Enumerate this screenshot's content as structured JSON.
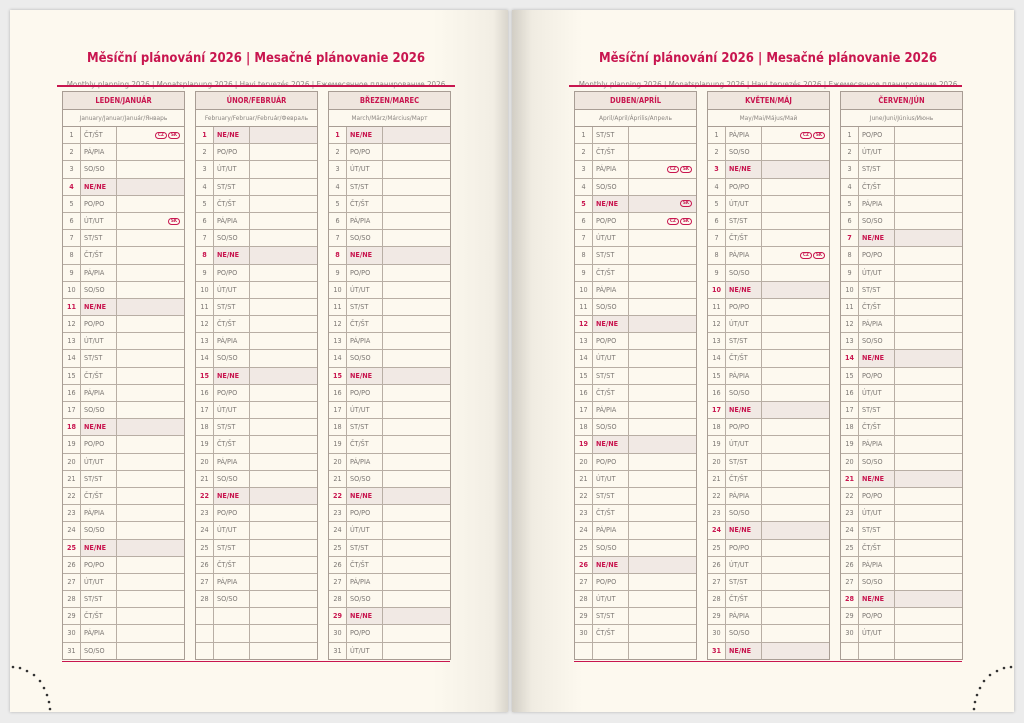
{
  "pages": [
    {
      "title": "Měsíční plánování 2026 | Mesačné plánovanie 2026",
      "subtitle": "Monthly planning 2026 | Monatsplanung 2026 | Havi tervezés 2026 | Ежемесячное планирование 2026",
      "months": [
        {
          "name": "LEDEN/JANUÁR",
          "sub": "January/Januar/Január/Январь",
          "rows": [
            [
              "1",
              "ČT/ŠT",
              "CZ",
              "SK"
            ],
            [
              "2",
              "PÁ/PIA"
            ],
            [
              "3",
              "SO/SO"
            ],
            [
              "4",
              "NE/NE"
            ],
            [
              "5",
              "PO/PO"
            ],
            [
              "6",
              "ÚT/UT",
              "SK"
            ],
            [
              "7",
              "ST/ST"
            ],
            [
              "8",
              "ČT/ŠT"
            ],
            [
              "9",
              "PÁ/PIA"
            ],
            [
              "10",
              "SO/SO"
            ],
            [
              "11",
              "NE/NE"
            ],
            [
              "12",
              "PO/PO"
            ],
            [
              "13",
              "ÚT/UT"
            ],
            [
              "14",
              "ST/ST"
            ],
            [
              "15",
              "ČT/ŠT"
            ],
            [
              "16",
              "PÁ/PIA"
            ],
            [
              "17",
              "SO/SO"
            ],
            [
              "18",
              "NE/NE"
            ],
            [
              "19",
              "PO/PO"
            ],
            [
              "20",
              "ÚT/UT"
            ],
            [
              "21",
              "ST/ST"
            ],
            [
              "22",
              "ČT/ŠT"
            ],
            [
              "23",
              "PÁ/PIA"
            ],
            [
              "24",
              "SO/SO"
            ],
            [
              "25",
              "NE/NE"
            ],
            [
              "26",
              "PO/PO"
            ],
            [
              "27",
              "ÚT/UT"
            ],
            [
              "28",
              "ST/ST"
            ],
            [
              "29",
              "ČT/ŠT"
            ],
            [
              "30",
              "PÁ/PIA"
            ],
            [
              "31",
              "SO/SO"
            ]
          ]
        },
        {
          "name": "ÚNOR/FEBRUÁR",
          "sub": "February/Februar/Február/Февраль",
          "rows": [
            [
              "1",
              "NE/NE"
            ],
            [
              "2",
              "PO/PO"
            ],
            [
              "3",
              "ÚT/UT"
            ],
            [
              "4",
              "ST/ST"
            ],
            [
              "5",
              "ČT/ŠT"
            ],
            [
              "6",
              "PÁ/PIA"
            ],
            [
              "7",
              "SO/SO"
            ],
            [
              "8",
              "NE/NE"
            ],
            [
              "9",
              "PO/PO"
            ],
            [
              "10",
              "ÚT/UT"
            ],
            [
              "11",
              "ST/ST"
            ],
            [
              "12",
              "ČT/ŠT"
            ],
            [
              "13",
              "PÁ/PIA"
            ],
            [
              "14",
              "SO/SO"
            ],
            [
              "15",
              "NE/NE"
            ],
            [
              "16",
              "PO/PO"
            ],
            [
              "17",
              "ÚT/UT"
            ],
            [
              "18",
              "ST/ST"
            ],
            [
              "19",
              "ČT/ŠT"
            ],
            [
              "20",
              "PÁ/PIA"
            ],
            [
              "21",
              "SO/SO"
            ],
            [
              "22",
              "NE/NE"
            ],
            [
              "23",
              "PO/PO"
            ],
            [
              "24",
              "ÚT/UT"
            ],
            [
              "25",
              "ST/ST"
            ],
            [
              "26",
              "ČT/ŠT"
            ],
            [
              "27",
              "PÁ/PIA"
            ],
            [
              "28",
              "SO/SO"
            ],
            [
              "",
              ""
            ],
            [
              "",
              ""
            ],
            [
              "",
              ""
            ]
          ]
        },
        {
          "name": "BŘEZEN/MAREC",
          "sub": "March/März/Március/Март",
          "rows": [
            [
              "1",
              "NE/NE"
            ],
            [
              "2",
              "PO/PO"
            ],
            [
              "3",
              "ÚT/UT"
            ],
            [
              "4",
              "ST/ST"
            ],
            [
              "5",
              "ČT/ŠT"
            ],
            [
              "6",
              "PÁ/PIA"
            ],
            [
              "7",
              "SO/SO"
            ],
            [
              "8",
              "NE/NE"
            ],
            [
              "9",
              "PO/PO"
            ],
            [
              "10",
              "ÚT/UT"
            ],
            [
              "11",
              "ST/ST"
            ],
            [
              "12",
              "ČT/ŠT"
            ],
            [
              "13",
              "PÁ/PIA"
            ],
            [
              "14",
              "SO/SO"
            ],
            [
              "15",
              "NE/NE"
            ],
            [
              "16",
              "PO/PO"
            ],
            [
              "17",
              "ÚT/UT"
            ],
            [
              "18",
              "ST/ST"
            ],
            [
              "19",
              "ČT/ŠT"
            ],
            [
              "20",
              "PÁ/PIA"
            ],
            [
              "21",
              "SO/SO"
            ],
            [
              "22",
              "NE/NE"
            ],
            [
              "23",
              "PO/PO"
            ],
            [
              "24",
              "ÚT/UT"
            ],
            [
              "25",
              "ST/ST"
            ],
            [
              "26",
              "ČT/ŠT"
            ],
            [
              "27",
              "PÁ/PIA"
            ],
            [
              "28",
              "SO/SO"
            ],
            [
              "29",
              "NE/NE"
            ],
            [
              "30",
              "PO/PO"
            ],
            [
              "31",
              "ÚT/UT"
            ]
          ]
        }
      ]
    },
    {
      "title": "Měsíční plánování 2026 | Mesačné plánovanie 2026",
      "subtitle": "Monthly planning 2026 | Monatsplanung 2026 | Havi tervezés 2026 | Ежемесячное планирование 2026",
      "months": [
        {
          "name": "DUBEN/APRÍL",
          "sub": "April/April/Április/Апрель",
          "rows": [
            [
              "1",
              "ST/ST"
            ],
            [
              "2",
              "ČT/ŠT"
            ],
            [
              "3",
              "PÁ/PIA",
              "CZ",
              "SK"
            ],
            [
              "4",
              "SO/SO"
            ],
            [
              "5",
              "NE/NE",
              "SK"
            ],
            [
              "6",
              "PO/PO",
              "CZ",
              "SK"
            ],
            [
              "7",
              "ÚT/UT"
            ],
            [
              "8",
              "ST/ST"
            ],
            [
              "9",
              "ČT/ŠT"
            ],
            [
              "10",
              "PÁ/PIA"
            ],
            [
              "11",
              "SO/SO"
            ],
            [
              "12",
              "NE/NE"
            ],
            [
              "13",
              "PO/PO"
            ],
            [
              "14",
              "ÚT/UT"
            ],
            [
              "15",
              "ST/ST"
            ],
            [
              "16",
              "ČT/ŠT"
            ],
            [
              "17",
              "PÁ/PIA"
            ],
            [
              "18",
              "SO/SO"
            ],
            [
              "19",
              "NE/NE"
            ],
            [
              "20",
              "PO/PO"
            ],
            [
              "21",
              "ÚT/UT"
            ],
            [
              "22",
              "ST/ST"
            ],
            [
              "23",
              "ČT/ŠT"
            ],
            [
              "24",
              "PÁ/PIA"
            ],
            [
              "25",
              "SO/SO"
            ],
            [
              "26",
              "NE/NE"
            ],
            [
              "27",
              "PO/PO"
            ],
            [
              "28",
              "ÚT/UT"
            ],
            [
              "29",
              "ST/ST"
            ],
            [
              "30",
              "ČT/ŠT"
            ],
            [
              "",
              ""
            ]
          ]
        },
        {
          "name": "KVĚTEN/MÁJ",
          "sub": "May/Mai/Május/Май",
          "rows": [
            [
              "1",
              "PÁ/PIA",
              "CZ",
              "SK"
            ],
            [
              "2",
              "SO/SO"
            ],
            [
              "3",
              "NE/NE"
            ],
            [
              "4",
              "PO/PO"
            ],
            [
              "5",
              "ÚT/UT"
            ],
            [
              "6",
              "ST/ST"
            ],
            [
              "7",
              "ČT/ŠT"
            ],
            [
              "8",
              "PÁ/PIA",
              "CZ",
              "SK"
            ],
            [
              "9",
              "SO/SO"
            ],
            [
              "10",
              "NE/NE"
            ],
            [
              "11",
              "PO/PO"
            ],
            [
              "12",
              "ÚT/UT"
            ],
            [
              "13",
              "ST/ST"
            ],
            [
              "14",
              "ČT/ŠT"
            ],
            [
              "15",
              "PÁ/PIA"
            ],
            [
              "16",
              "SO/SO"
            ],
            [
              "17",
              "NE/NE"
            ],
            [
              "18",
              "PO/PO"
            ],
            [
              "19",
              "ÚT/UT"
            ],
            [
              "20",
              "ST/ST"
            ],
            [
              "21",
              "ČT/ŠT"
            ],
            [
              "22",
              "PÁ/PIA"
            ],
            [
              "23",
              "SO/SO"
            ],
            [
              "24",
              "NE/NE"
            ],
            [
              "25",
              "PO/PO"
            ],
            [
              "26",
              "ÚT/UT"
            ],
            [
              "27",
              "ST/ST"
            ],
            [
              "28",
              "ČT/ŠT"
            ],
            [
              "29",
              "PÁ/PIA"
            ],
            [
              "30",
              "SO/SO"
            ],
            [
              "31",
              "NE/NE"
            ]
          ]
        },
        {
          "name": "ČERVEN/JÚN",
          "sub": "June/Juni/Június/Июнь",
          "rows": [
            [
              "1",
              "PO/PO"
            ],
            [
              "2",
              "ÚT/UT"
            ],
            [
              "3",
              "ST/ST"
            ],
            [
              "4",
              "ČT/ŠT"
            ],
            [
              "5",
              "PÁ/PIA"
            ],
            [
              "6",
              "SO/SO"
            ],
            [
              "7",
              "NE/NE"
            ],
            [
              "8",
              "PO/PO"
            ],
            [
              "9",
              "ÚT/UT"
            ],
            [
              "10",
              "ST/ST"
            ],
            [
              "11",
              "ČT/ŠT"
            ],
            [
              "12",
              "PÁ/PIA"
            ],
            [
              "13",
              "SO/SO"
            ],
            [
              "14",
              "NE/NE"
            ],
            [
              "15",
              "PO/PO"
            ],
            [
              "16",
              "ÚT/UT"
            ],
            [
              "17",
              "ST/ST"
            ],
            [
              "18",
              "ČT/ŠT"
            ],
            [
              "19",
              "PÁ/PIA"
            ],
            [
              "20",
              "SO/SO"
            ],
            [
              "21",
              "NE/NE"
            ],
            [
              "22",
              "PO/PO"
            ],
            [
              "23",
              "ÚT/UT"
            ],
            [
              "24",
              "ST/ST"
            ],
            [
              "25",
              "ČT/ŠT"
            ],
            [
              "26",
              "PÁ/PIA"
            ],
            [
              "27",
              "SO/SO"
            ],
            [
              "28",
              "NE/NE"
            ],
            [
              "29",
              "PO/PO"
            ],
            [
              "30",
              "ÚT/UT"
            ],
            [
              "",
              ""
            ]
          ]
        }
      ]
    }
  ],
  "colors": {
    "accent": "#c8164f",
    "paper": "#fdf9ef",
    "sunday_fill": "#f1e9e4",
    "grid": "#b8aea4"
  }
}
